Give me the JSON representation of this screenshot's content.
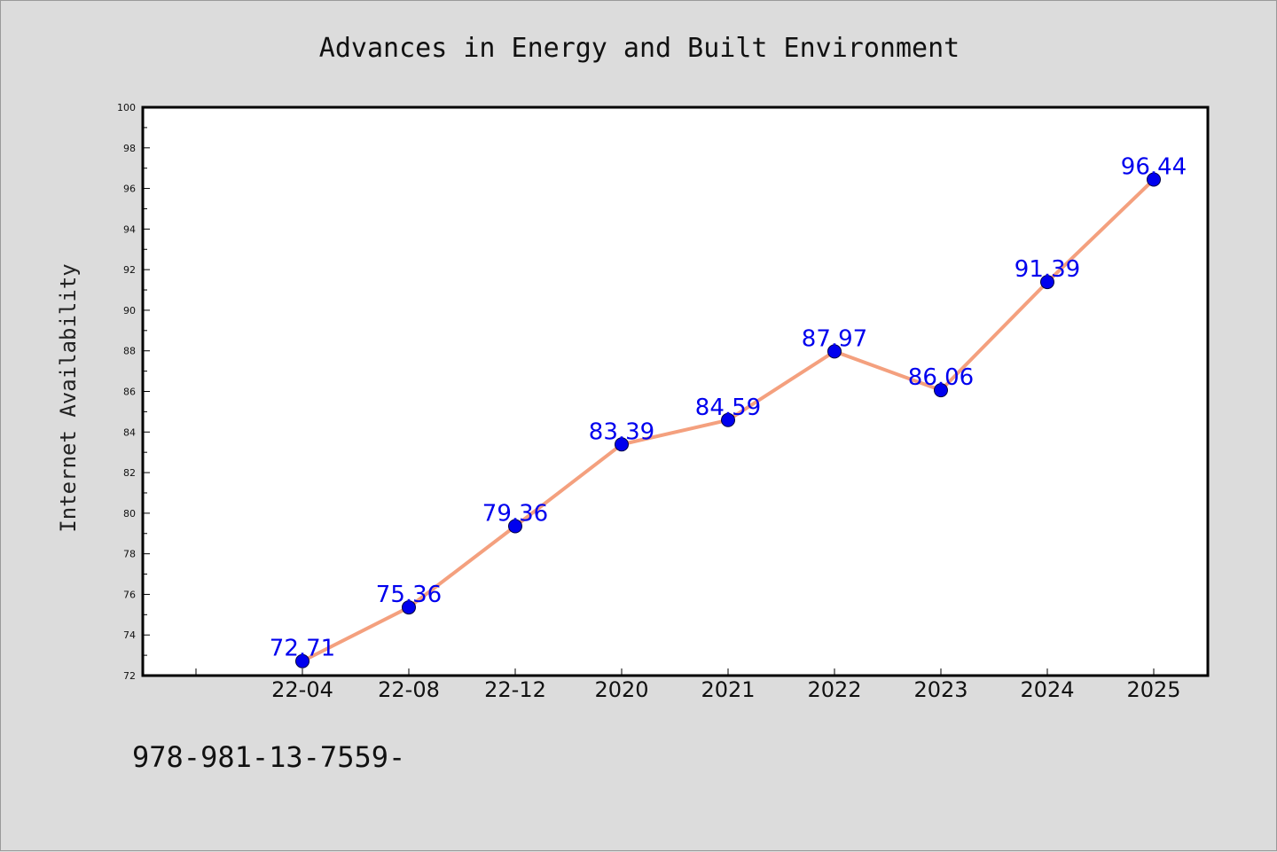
{
  "chart_data": {
    "type": "line",
    "title": "Advances in Energy and Built Environment",
    "xlabel": "",
    "ylabel": "Internet Availability",
    "categories": [
      "22-04",
      "22-08",
      "22-12",
      "2020",
      "2021",
      "2022",
      "2023",
      "2024",
      "2025"
    ],
    "series": [
      {
        "values": [
          72.71,
          75.36,
          79.36,
          83.39,
          84.59,
          87.97,
          86.06,
          91.39,
          96.44
        ],
        "labels": [
          "72.71",
          "75.36",
          "79.36",
          "83.39",
          "84.59",
          "87.97",
          "86.06",
          "91.39",
          "96.44"
        ]
      }
    ],
    "ylim": [
      72,
      100
    ],
    "yticks": [
      "72",
      "74",
      "76",
      "78",
      "80",
      "82",
      "84",
      "86",
      "88",
      "90",
      "92",
      "94",
      "96",
      "98",
      "100"
    ],
    "grid": false,
    "colors": {
      "line": "#f4a07e",
      "marker": "#0000ee",
      "data_label": "#0000ee",
      "background": "#dcdcdc",
      "plot_area": "#ffffff"
    }
  },
  "footer": {
    "text": "978-981-13-7559-"
  }
}
